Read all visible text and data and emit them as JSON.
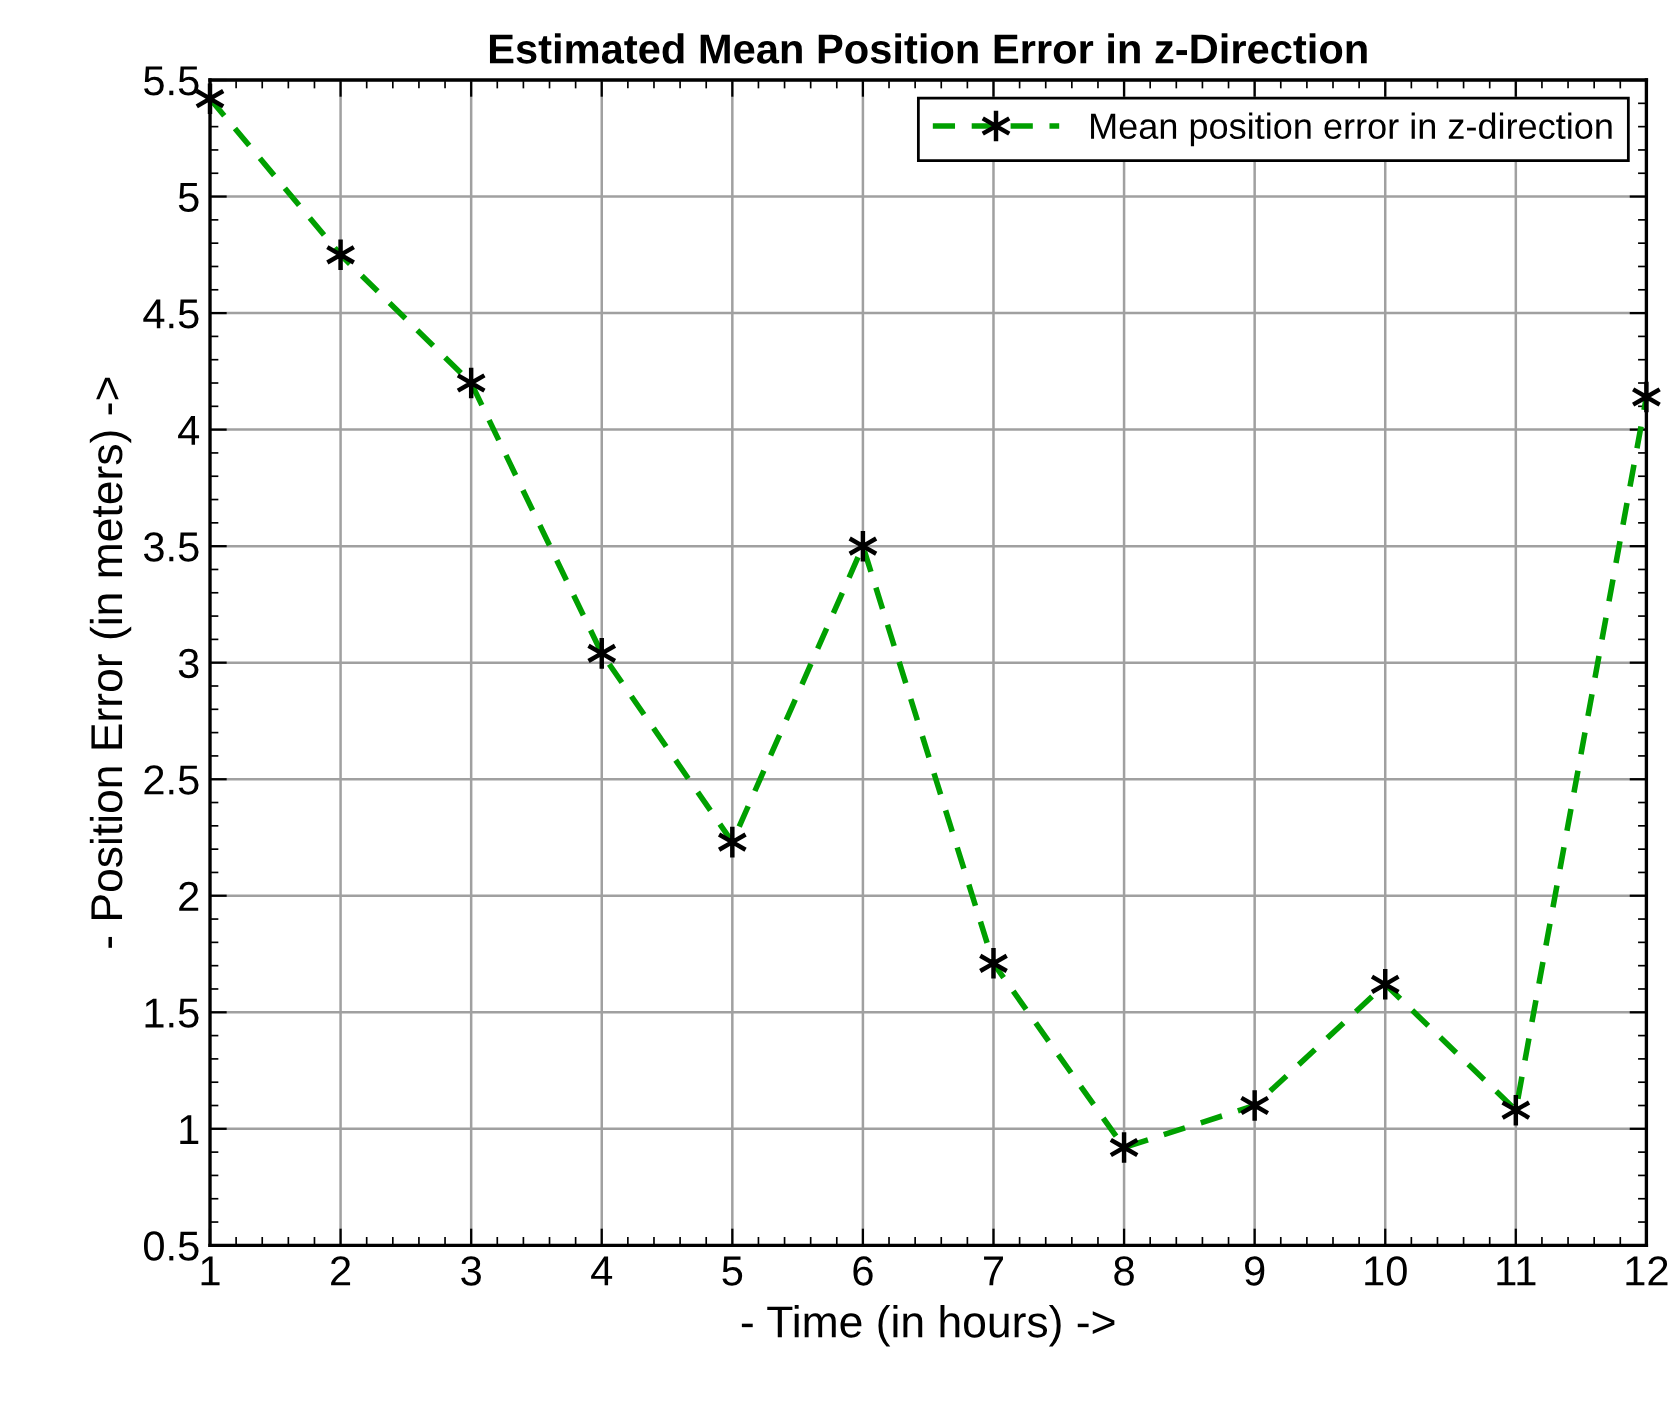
{
  "chart_data": {
    "type": "line",
    "title": "Estimated Mean Position Error in z-Direction",
    "xlabel": "- Time (in hours) ->",
    "ylabel": "- Position Error (in meters) ->",
    "x": [
      1,
      2,
      3,
      4,
      5,
      6,
      7,
      8,
      9,
      10,
      11,
      12
    ],
    "series": [
      {
        "name": "Mean position error in z-direction",
        "color": "#00a000",
        "values": [
          5.42,
          4.75,
          4.2,
          3.04,
          2.23,
          3.5,
          1.71,
          0.92,
          1.1,
          1.62,
          1.08,
          4.14
        ]
      }
    ],
    "xlim": [
      1,
      12
    ],
    "xticks": [
      1,
      2,
      3,
      4,
      5,
      6,
      7,
      8,
      9,
      10,
      11,
      12
    ],
    "ylim": [
      0.5,
      5.5
    ],
    "yticks": [
      0.5,
      1,
      1.5,
      2,
      2.5,
      3,
      3.5,
      4,
      4.5,
      5,
      5.5
    ],
    "grid": true,
    "legend": "top right",
    "marker": "cross",
    "line_style": "dashed"
  }
}
